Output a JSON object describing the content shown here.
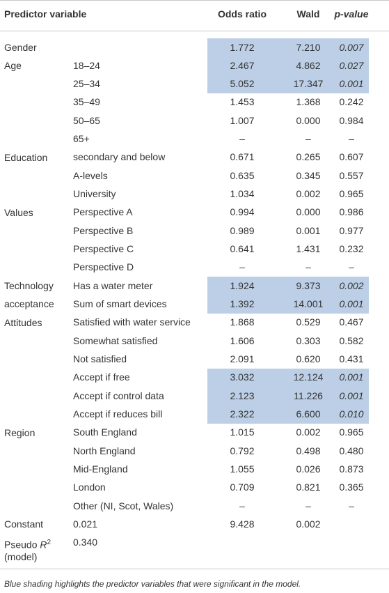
{
  "header": {
    "predictor": "Predictor variable",
    "odds": "Odds ratio",
    "wald": "Wald",
    "p": "p-value"
  },
  "rows": [
    {
      "group": "Gender",
      "odds": "1.772",
      "wald": "7.210",
      "p": "0.007",
      "shaded": true
    },
    {
      "group": "Age",
      "sub": "18–24",
      "odds": "2.467",
      "wald": "4.862",
      "p": "0.027",
      "shaded": true
    },
    {
      "sub": "25–34",
      "odds": "5.052",
      "wald": "17.347",
      "p": "0.001",
      "shaded": true
    },
    {
      "sub": "35–49",
      "odds": "1.453",
      "wald": "1.368",
      "p": "0.242"
    },
    {
      "sub": "50–65",
      "odds": "1.007",
      "wald": "0.000",
      "p": "0.984"
    },
    {
      "sub": "65+",
      "odds": "–",
      "wald": "–",
      "p": "–"
    },
    {
      "group": "Education",
      "sub": "secondary and below",
      "odds": "0.671",
      "wald": "0.265",
      "p": "0.607"
    },
    {
      "sub": "A-levels",
      "odds": "0.635",
      "wald": "0.345",
      "p": "0.557"
    },
    {
      "sub": "University",
      "odds": "1.034",
      "wald": "0.002",
      "p": "0.965"
    },
    {
      "group": "Values",
      "sub": "Perspective A",
      "odds": "0.994",
      "wald": "0.000",
      "p": "0.986"
    },
    {
      "sub": "Perspective B",
      "odds": "0.989",
      "wald": "0.001",
      "p": "0.977"
    },
    {
      "sub": "Perspective C",
      "odds": "0.641",
      "wald": "1.431",
      "p": "0.232"
    },
    {
      "sub": "Perspective D",
      "odds": "–",
      "wald": "–",
      "p": "–"
    },
    {
      "group": "Technology acceptance",
      "sub": "Has a water meter",
      "odds": "1.924",
      "wald": "9.373",
      "p": "0.002",
      "shaded": true
    },
    {
      "sub": "Sum of smart devices",
      "odds": "1.392",
      "wald": "14.001",
      "p": "0.001",
      "shaded": true
    },
    {
      "group": "Attitudes",
      "sub": "Satisfied with water service",
      "odds": "1.868",
      "wald": "0.529",
      "p": "0.467"
    },
    {
      "sub": "Somewhat satisfied",
      "odds": "1.606",
      "wald": "0.303",
      "p": "0.582"
    },
    {
      "sub": "Not satisfied",
      "odds": "2.091",
      "wald": "0.620",
      "p": "0.431"
    },
    {
      "sub": "Accept if free",
      "odds": "3.032",
      "wald": "12.124",
      "p": "0.001",
      "shaded": true
    },
    {
      "sub": "Accept if control data",
      "odds": "2.123",
      "wald": "11.226",
      "p": "0.001",
      "shaded": true
    },
    {
      "sub": "Accept if reduces bill",
      "odds": "2.322",
      "wald": "6.600",
      "p": "0.010",
      "shaded": true
    },
    {
      "group": "Region",
      "sub": "South England",
      "odds": "1.015",
      "wald": "0.002",
      "p": "0.965"
    },
    {
      "sub": "North England",
      "odds": "0.792",
      "wald": "0.498",
      "p": "0.480"
    },
    {
      "sub": "Mid-England",
      "odds": "1.055",
      "wald": "0.026",
      "p": "0.873"
    },
    {
      "sub": "London",
      "odds": "0.709",
      "wald": "0.821",
      "p": "0.365"
    },
    {
      "sub": "Other (NI, Scot, Wales)",
      "odds": "–",
      "wald": "–",
      "p": "–"
    },
    {
      "group": "Constant",
      "sub": "0.021",
      "odds": "9.428",
      "wald": "0.002"
    },
    {
      "group_parts": {
        "text": "Pseudo",
        "var": "R",
        "sup": "2",
        "note": "(model)"
      },
      "sub": "0.340"
    }
  ],
  "footnote": "Blue shading highlights the predictor variables that were significant in the model."
}
